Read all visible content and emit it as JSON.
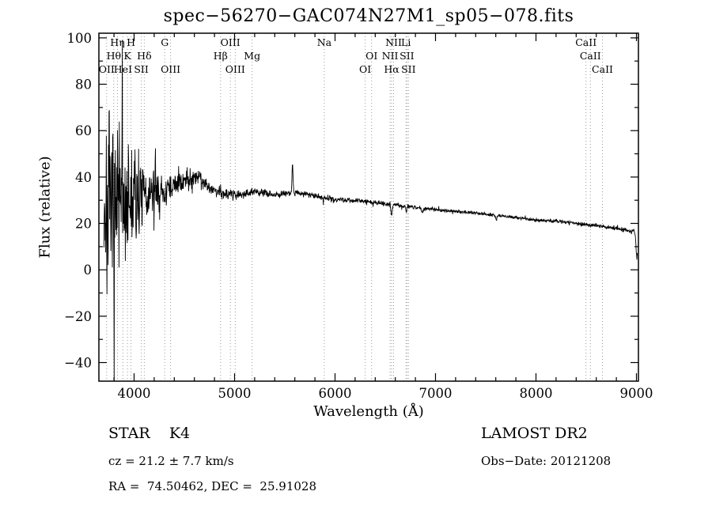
{
  "chart_data": {
    "type": "line",
    "title": "spec−56270−GAC074N27M1_sp05−078.fits",
    "xlabel": "Wavelength (Å)",
    "ylabel": "Flux (relative)",
    "xlim": [
      3650,
      9020
    ],
    "ylim": [
      -48,
      102
    ],
    "xticks": [
      4000,
      5000,
      6000,
      7000,
      8000,
      9000
    ],
    "yticks": [
      -40,
      -20,
      0,
      20,
      40,
      60,
      80,
      100
    ],
    "x_minor_step": 200,
    "y_minor_step": 10,
    "grid": false,
    "legend": "none",
    "line_color": "#000000",
    "ref_line_color": "#9a9a9a",
    "data_range": [
      3700,
      9010
    ],
    "sample_step": 3,
    "seed": 7,
    "spectral_lines": [
      3727,
      3798,
      3835,
      3889,
      3934,
      3970,
      4072,
      4102,
      4305,
      4363,
      4861,
      4959,
      5007,
      5175,
      5893,
      6300,
      6364,
      6548,
      6563,
      6583,
      6707,
      6716,
      6731,
      8498,
      8542,
      8662
    ],
    "line_labels": [
      {
        "text": "Hη",
        "wavelength": 3835,
        "row": 1
      },
      {
        "text": "H",
        "wavelength": 3970,
        "row": 1
      },
      {
        "text": "G",
        "wavelength": 4305,
        "row": 1
      },
      {
        "text": "OIII",
        "wavelength": 4959,
        "row": 1
      },
      {
        "text": "Na",
        "wavelength": 5893,
        "row": 1
      },
      {
        "text": "NII",
        "wavelength": 6583,
        "row": 1
      },
      {
        "text": "Li",
        "wavelength": 6707,
        "row": 1
      },
      {
        "text": "CaII",
        "wavelength": 8498,
        "row": 1
      },
      {
        "text": "Hθ",
        "wavelength": 3798,
        "row": 2
      },
      {
        "text": "K",
        "wavelength": 3934,
        "row": 2
      },
      {
        "text": "Hδ",
        "wavelength": 4102,
        "row": 2
      },
      {
        "text": "Hβ",
        "wavelength": 4861,
        "row": 2
      },
      {
        "text": "Mg",
        "wavelength": 5175,
        "row": 2
      },
      {
        "text": "OI",
        "wavelength": 6364,
        "row": 2
      },
      {
        "text": "NII",
        "wavelength": 6548,
        "row": 2
      },
      {
        "text": "SII",
        "wavelength": 6716,
        "row": 2
      },
      {
        "text": "CaII",
        "wavelength": 8542,
        "row": 2
      },
      {
        "text": "OII",
        "wavelength": 3727,
        "row": 3
      },
      {
        "text": "HeI",
        "wavelength": 3889,
        "row": 3
      },
      {
        "text": "SII",
        "wavelength": 4072,
        "row": 3
      },
      {
        "text": "OIII",
        "wavelength": 4363,
        "row": 3
      },
      {
        "text": "OIII",
        "wavelength": 5007,
        "row": 3
      },
      {
        "text": "OI",
        "wavelength": 6300,
        "row": 3
      },
      {
        "text": "Hα",
        "wavelength": 6563,
        "row": 3
      },
      {
        "text": "SII",
        "wavelength": 6731,
        "row": 3
      },
      {
        "text": "CaII",
        "wavelength": 8662,
        "row": 3
      }
    ],
    "continuum": [
      [
        3650,
        25
      ],
      [
        3700,
        27
      ],
      [
        3750,
        28
      ],
      [
        3800,
        29
      ],
      [
        3900,
        30
      ],
      [
        4000,
        31
      ],
      [
        4100,
        31.5
      ],
      [
        4200,
        33
      ],
      [
        4300,
        33.5
      ],
      [
        4400,
        36
      ],
      [
        4500,
        38.5
      ],
      [
        4600,
        40.5
      ],
      [
        4650,
        40
      ],
      [
        4700,
        37.5
      ],
      [
        4800,
        34
      ],
      [
        4900,
        33
      ],
      [
        5000,
        32.5
      ],
      [
        5100,
        33
      ],
      [
        5200,
        33.5
      ],
      [
        5300,
        33
      ],
      [
        5400,
        32.5
      ],
      [
        5500,
        33
      ],
      [
        5600,
        33.5
      ],
      [
        5700,
        32.5
      ],
      [
        5800,
        32
      ],
      [
        5900,
        30.8
      ],
      [
        6000,
        30.5
      ],
      [
        6200,
        29.8
      ],
      [
        6400,
        29
      ],
      [
        6600,
        28
      ],
      [
        6800,
        27
      ],
      [
        7000,
        26
      ],
      [
        7200,
        25.2
      ],
      [
        7400,
        24.5
      ],
      [
        7600,
        23.5
      ],
      [
        7800,
        22.5
      ],
      [
        8000,
        21.5
      ],
      [
        8200,
        21
      ],
      [
        8400,
        20
      ],
      [
        8600,
        19
      ],
      [
        8800,
        17.8
      ],
      [
        8900,
        17
      ],
      [
        9010,
        16
      ]
    ],
    "noise_envelope": [
      [
        3700,
        58
      ],
      [
        3750,
        60
      ],
      [
        3800,
        55
      ],
      [
        3850,
        50
      ],
      [
        3900,
        42
      ],
      [
        3950,
        36
      ],
      [
        4000,
        28
      ],
      [
        4050,
        24
      ],
      [
        4100,
        20
      ],
      [
        4150,
        17
      ],
      [
        4200,
        14
      ],
      [
        4300,
        11
      ],
      [
        4400,
        9
      ],
      [
        4500,
        8
      ],
      [
        4600,
        7
      ],
      [
        4700,
        5
      ],
      [
        4800,
        4
      ],
      [
        4900,
        3.5
      ],
      [
        5000,
        3
      ],
      [
        5200,
        2.6
      ],
      [
        5400,
        2.3
      ],
      [
        5700,
        2
      ],
      [
        6000,
        1.7
      ],
      [
        6500,
        1.4
      ],
      [
        7000,
        1.2
      ],
      [
        7500,
        1.1
      ],
      [
        8000,
        1.1
      ],
      [
        8500,
        1.2
      ],
      [
        9010,
        1.6
      ]
    ],
    "features": [
      {
        "wavelength": 5577,
        "amplitude": 12,
        "sigma": 5
      },
      {
        "wavelength": 6563,
        "amplitude": -5,
        "sigma": 6
      },
      {
        "wavelength": 6710,
        "amplitude": -3,
        "sigma": 5
      },
      {
        "wavelength": 6870,
        "amplitude": -2,
        "sigma": 8
      },
      {
        "wavelength": 7605,
        "amplitude": -2,
        "sigma": 8
      },
      {
        "wavelength": 9005,
        "amplitude": -11,
        "sigma": 8
      }
    ]
  },
  "footer": {
    "class_label": "STAR    K4",
    "survey": "LAMOST DR2",
    "cz": "cz = 21.2 ± 7.7 km/s",
    "obs_date": "Obs−Date: 20121208",
    "radec": "RA =  74.50462, DEC =  25.91028"
  }
}
